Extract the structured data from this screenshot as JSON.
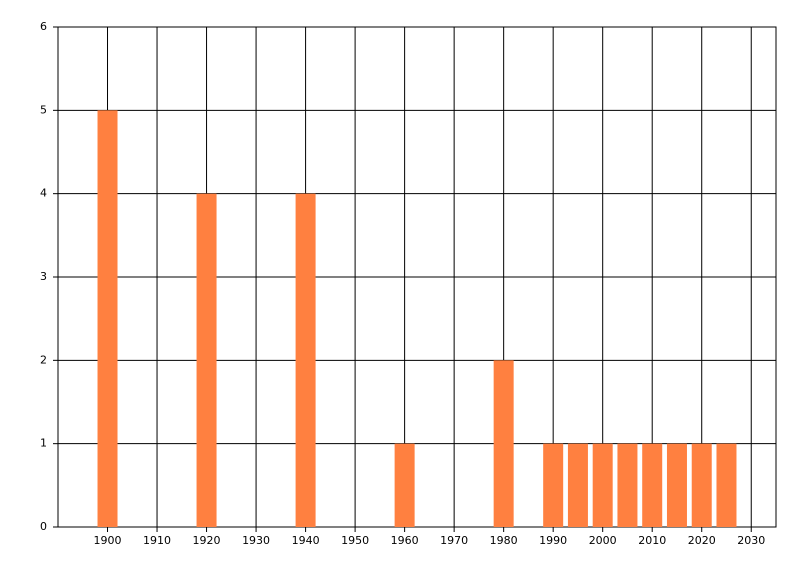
{
  "chart_data": {
    "type": "bar",
    "x": [
      1900,
      1920,
      1940,
      1960,
      1980,
      1990,
      1995,
      2000,
      2005,
      2010,
      2015,
      2020,
      2025
    ],
    "values": [
      5,
      4,
      4,
      1,
      2,
      1,
      1,
      1,
      1,
      1,
      1,
      1,
      1
    ],
    "color": "#ff8040",
    "xlim": [
      1890,
      2035
    ],
    "xticks": [
      1900,
      1910,
      1920,
      1930,
      1940,
      1950,
      1960,
      1970,
      1980,
      1990,
      2000,
      2010,
      2020,
      2030
    ],
    "ylim": [
      0,
      6
    ],
    "yticks": [
      0,
      1,
      2,
      3,
      4,
      5,
      6
    ],
    "grid": true
  }
}
